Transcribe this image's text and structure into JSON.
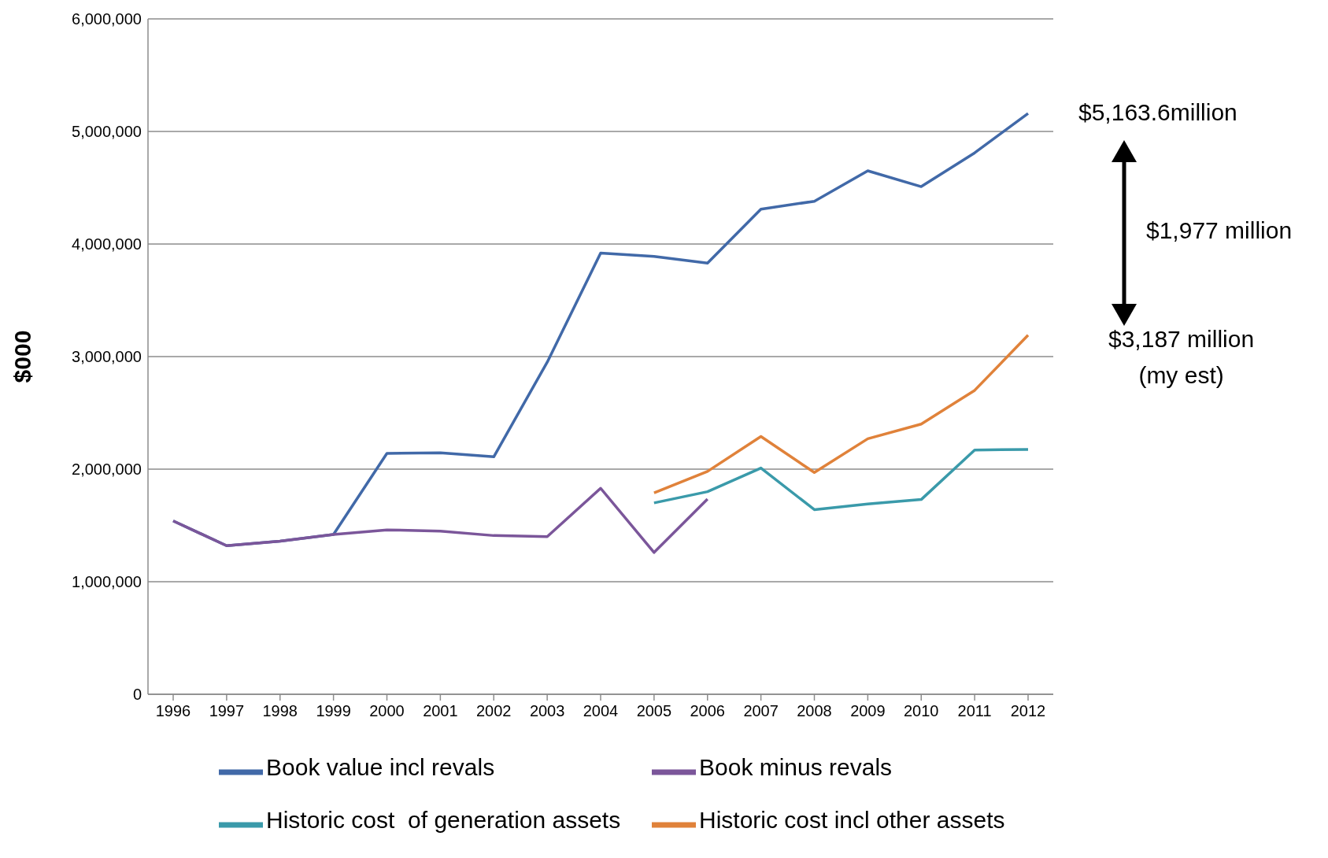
{
  "chart_data": {
    "type": "line",
    "ylabel": "$000",
    "categories": [
      "1996",
      "1997",
      "1998",
      "1999",
      "2000",
      "2001",
      "2002",
      "2003",
      "2004",
      "2005",
      "2006",
      "2007",
      "2008",
      "2009",
      "2010",
      "2011",
      "2012"
    ],
    "series": [
      {
        "name": "Book value incl revals",
        "color": "#4169a8",
        "values": [
          1540000,
          1320000,
          1360000,
          1420000,
          2140000,
          2145000,
          2110000,
          2950000,
          3920000,
          3890000,
          3830000,
          4310000,
          4380000,
          4650000,
          4510000,
          4810000,
          5160000
        ]
      },
      {
        "name": "Book minus revals",
        "color": "#7b569a",
        "values": [
          1540000,
          1320000,
          1360000,
          1420000,
          1460000,
          1450000,
          1410000,
          1400000,
          1830000,
          1260000,
          1735000,
          null,
          null,
          null,
          null,
          null,
          null
        ]
      },
      {
        "name": "Historic cost  of generation assets",
        "color": "#3a9aaa",
        "values": [
          null,
          null,
          null,
          null,
          null,
          null,
          null,
          null,
          null,
          1700000,
          1800000,
          2010000,
          1640000,
          1690000,
          1730000,
          2170000,
          2175000
        ]
      },
      {
        "name": "Historic cost incl other assets",
        "color": "#e0823a",
        "values": [
          null,
          null,
          null,
          null,
          null,
          null,
          null,
          null,
          null,
          1790000,
          1980000,
          2290000,
          1970000,
          2270000,
          2400000,
          2700000,
          3190000
        ]
      }
    ],
    "ylim": [
      0,
      6000000
    ],
    "yticks": [
      0,
      {
        "value": 1000000,
        "label": "1,000,000"
      },
      {
        "value": 2000000,
        "label": "2,000,000"
      },
      {
        "value": 3000000,
        "label": "3,000,000"
      },
      {
        "value": 4000000,
        "label": "4,000,000"
      },
      {
        "value": 5000000,
        "label": "5,000,000"
      },
      {
        "value": 6000000,
        "label": "6,000,000"
      }
    ],
    "grid": "y",
    "legend": "bottom",
    "marker": "none",
    "line_style": "solid",
    "annotations": [
      "$5,163.6million",
      "$1,977 million",
      "$3,187 million\n(my est)"
    ]
  }
}
